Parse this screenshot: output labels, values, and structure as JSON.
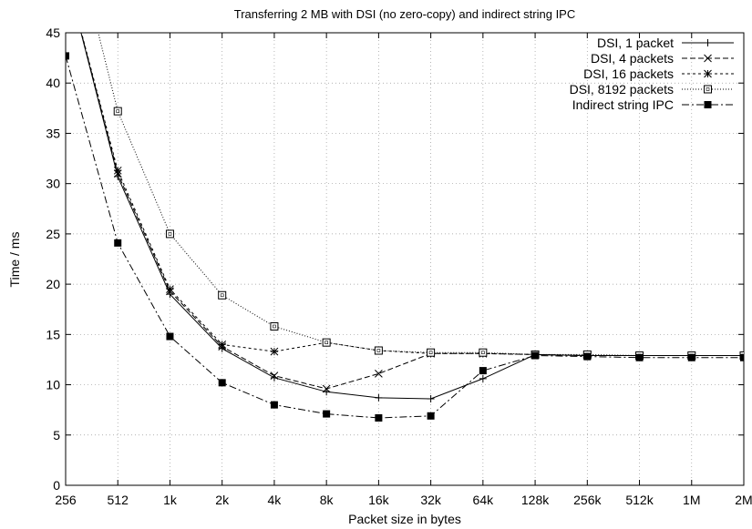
{
  "chart_data": {
    "type": "line",
    "title": "Transferring 2 MB with DSI (no zero-copy) and indirect string IPC",
    "xlabel": "Packet size in bytes",
    "ylabel": "Time / ms",
    "x_scale": "log2",
    "categories": [
      "256",
      "512",
      "1k",
      "2k",
      "4k",
      "8k",
      "16k",
      "32k",
      "64k",
      "128k",
      "256k",
      "512k",
      "1M",
      "2M"
    ],
    "x": [
      256,
      512,
      1024,
      2048,
      4096,
      8192,
      16384,
      32768,
      65536,
      131072,
      262144,
      524288,
      1048576,
      2097152
    ],
    "ylim": [
      0,
      45
    ],
    "yticks": [
      0,
      5,
      10,
      15,
      20,
      25,
      30,
      35,
      40,
      45
    ],
    "grid": true,
    "legend_position": "top-right",
    "series": [
      {
        "name": "DSI, 1 packet",
        "marker": "plus",
        "dash": "solid",
        "values": [
          51,
          30.7,
          19.0,
          13.6,
          10.7,
          9.3,
          8.7,
          8.6,
          10.6,
          13.0,
          12.9,
          12.9,
          12.9,
          12.9
        ]
      },
      {
        "name": "DSI, 4 packets",
        "marker": "cross",
        "dash": "dashed",
        "values": [
          51,
          31.0,
          19.3,
          13.8,
          10.9,
          9.6,
          11.1,
          13.1,
          13.1,
          13.0,
          12.9,
          12.9,
          12.9,
          12.9
        ]
      },
      {
        "name": "DSI, 16 packets",
        "marker": "asterisk",
        "dash": "short-dashed",
        "values": [
          51,
          31.3,
          19.5,
          14.0,
          13.3,
          14.2,
          13.4,
          13.1,
          13.1,
          13.0,
          12.9,
          12.9,
          12.9,
          12.9
        ]
      },
      {
        "name": "DSI, 8192 packets",
        "marker": "open-square",
        "dash": "dotted",
        "values": [
          58,
          37.2,
          25.0,
          18.9,
          15.8,
          14.2,
          13.4,
          13.2,
          13.2,
          13.0,
          13.0,
          12.9,
          12.9,
          12.9
        ]
      },
      {
        "name": "Indirect string IPC",
        "marker": "filled-square",
        "dash": "dash-dot",
        "values": [
          42.7,
          24.1,
          14.8,
          10.2,
          8.0,
          7.1,
          6.7,
          6.9,
          11.4,
          12.9,
          12.8,
          12.7,
          12.7,
          12.7
        ]
      }
    ]
  }
}
